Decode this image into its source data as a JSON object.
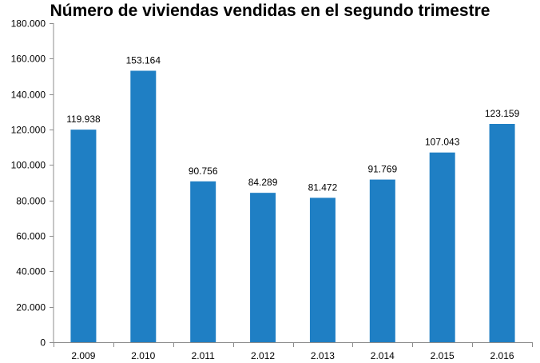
{
  "chart_data": {
    "type": "bar",
    "title": "Número de viviendas vendidas en el segundo trimestre",
    "categories": [
      "2.009",
      "2.010",
      "2.011",
      "2.012",
      "2.013",
      "2.014",
      "2.015",
      "2.016"
    ],
    "values": [
      119938,
      153164,
      90756,
      84289,
      81472,
      91769,
      107043,
      123159
    ],
    "data_labels": [
      "119.938",
      "153.164",
      "90.756",
      "84.289",
      "81.472",
      "91.769",
      "107.043",
      "123.159"
    ],
    "y_ticks": [
      0,
      20000,
      40000,
      60000,
      80000,
      100000,
      120000,
      140000,
      160000,
      180000
    ],
    "y_tick_labels": [
      "0",
      "20.000",
      "40.000",
      "60.000",
      "80.000",
      "100.000",
      "120.000",
      "140.000",
      "160.000",
      "180.000"
    ],
    "ylim": [
      0,
      180000
    ],
    "xlabel": "",
    "ylabel": "",
    "grid": false,
    "legend": "none",
    "bar_color": "#1f7fc4",
    "axis_color": "#8c8c8c"
  }
}
